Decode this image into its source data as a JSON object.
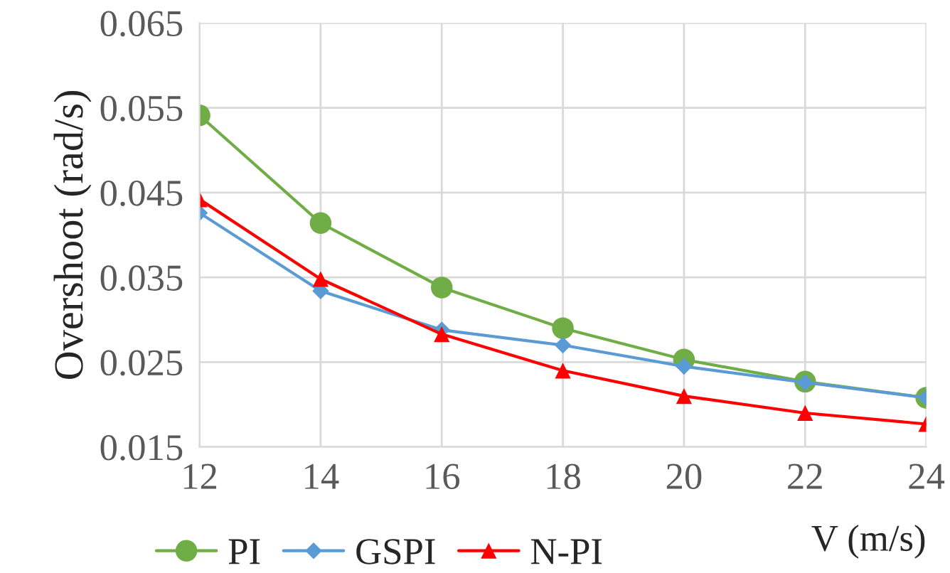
{
  "chart_data": {
    "type": "line",
    "xlabel": "V (m/s)",
    "ylabel": "Overshoot (rad/s)",
    "x": [
      12,
      14,
      16,
      18,
      20,
      22,
      24
    ],
    "xlim": [
      12,
      24
    ],
    "xticks": [
      12,
      14,
      16,
      18,
      20,
      22,
      24
    ],
    "ylim": [
      0.015,
      0.065
    ],
    "yticks": [
      {
        "value": 0.015,
        "label": "0.015"
      },
      {
        "value": 0.025,
        "label": "0.025"
      },
      {
        "value": 0.035,
        "label": "0.035"
      },
      {
        "value": 0.045,
        "label": "0.045"
      },
      {
        "value": 0.055,
        "label": "0.055"
      },
      {
        "value": 0.065,
        "label": "0.065"
      }
    ],
    "grid": true,
    "legend": "bottom left",
    "series": [
      {
        "name": "PI",
        "color": "#70ad47",
        "marker": "circle",
        "values": [
          0.0541,
          0.0414,
          0.0338,
          0.029,
          0.0253,
          0.0227,
          0.0208
        ]
      },
      {
        "name": "GSPI",
        "color": "#5b9bd5",
        "marker": "diamond",
        "values": [
          0.0426,
          0.0334,
          0.0288,
          0.027,
          0.0245,
          0.0226,
          0.0208
        ]
      },
      {
        "name": "N-PI",
        "color": "#ff0000",
        "marker": "triangle",
        "values": [
          0.0442,
          0.0348,
          0.0283,
          0.024,
          0.021,
          0.019,
          0.0177
        ]
      }
    ]
  }
}
